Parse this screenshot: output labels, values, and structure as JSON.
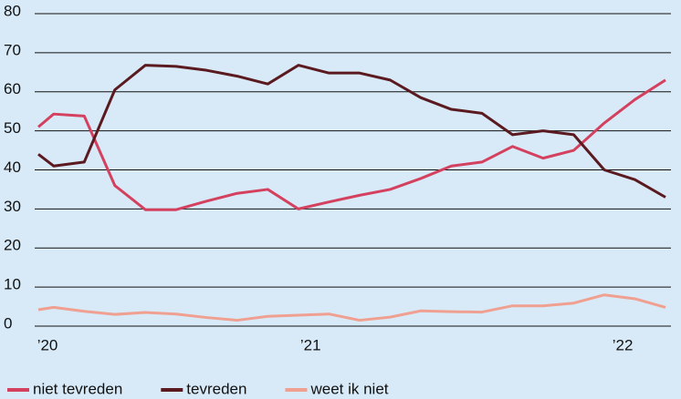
{
  "chart_data": {
    "type": "line",
    "x": [
      0,
      0.5,
      1.5,
      2.5,
      3.5,
      4.5,
      5.5,
      6.5,
      7.5,
      8.5,
      9.5,
      10.5,
      11.5,
      12.5,
      13.5,
      14.5,
      15.5,
      16.5,
      17.5,
      18.5,
      19.5,
      20.5
    ],
    "series": [
      {
        "name": "niet tevreden",
        "color": "#d4415f",
        "values": [
          51,
          54.3,
          53.8,
          36,
          29.8,
          29.8,
          32,
          34,
          35,
          30,
          31.8,
          33.5,
          35,
          37.8,
          41,
          42,
          46,
          43,
          45,
          52,
          58,
          63
        ]
      },
      {
        "name": "tevreden",
        "color": "#5a1a1f",
        "values": [
          44,
          41,
          42,
          60.5,
          66.8,
          66.5,
          65.5,
          64,
          62,
          66.8,
          64.8,
          64.8,
          63,
          58.5,
          55.5,
          54.5,
          49,
          50,
          49,
          40,
          37.5,
          33
        ]
      },
      {
        "name": "weet ik niet",
        "color": "#f0a090",
        "values": [
          4.2,
          4.8,
          3.8,
          3,
          3.5,
          3.1,
          2.2,
          1.5,
          2.5,
          2.8,
          3.1,
          1.5,
          2.3,
          3.9,
          3.7,
          3.6,
          5.2,
          5.2,
          5.9,
          8,
          7,
          4.8
        ]
      }
    ],
    "xlim": [
      0,
      20.5
    ],
    "xticks": [
      {
        "value": 0.3,
        "label": "’20"
      },
      {
        "value": 8.9,
        "label": "’21"
      },
      {
        "value": 19.1,
        "label": "’22"
      }
    ],
    "ylim": [
      0,
      80
    ],
    "yticks": [
      0,
      10,
      20,
      30,
      40,
      50,
      60,
      70,
      80
    ],
    "grid": true,
    "legend": "bottom"
  }
}
